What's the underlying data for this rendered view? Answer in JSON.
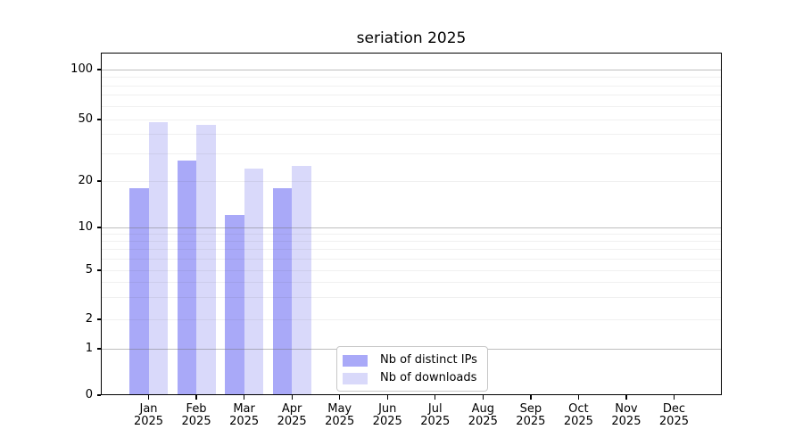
{
  "title": "seriation 2025",
  "chart_data": {
    "type": "bar",
    "title": "seriation 2025",
    "x_axis": {
      "categories": [
        {
          "month": "Jan",
          "year": "2025"
        },
        {
          "month": "Feb",
          "year": "2025"
        },
        {
          "month": "Mar",
          "year": "2025"
        },
        {
          "month": "Apr",
          "year": "2025"
        },
        {
          "month": "May",
          "year": "2025"
        },
        {
          "month": "Jun",
          "year": "2025"
        },
        {
          "month": "Jul",
          "year": "2025"
        },
        {
          "month": "Aug",
          "year": "2025"
        },
        {
          "month": "Sep",
          "year": "2025"
        },
        {
          "month": "Oct",
          "year": "2025"
        },
        {
          "month": "Nov",
          "year": "2025"
        },
        {
          "month": "Dec",
          "year": "2025"
        }
      ]
    },
    "y_axis": {
      "scale": "symlog",
      "tick_values": [
        0,
        1,
        2,
        5,
        10,
        20,
        50,
        100
      ],
      "tick_labels": [
        "0",
        "1",
        "2",
        "5",
        "10",
        "20",
        "50",
        "100"
      ],
      "major_gridlines": [
        1,
        10,
        100
      ],
      "minor_gridlines": [
        2,
        3,
        4,
        5,
        6,
        7,
        8,
        9,
        20,
        30,
        40,
        50,
        60,
        70,
        80,
        90
      ],
      "ylim": [
        0,
        130
      ],
      "grid": true
    },
    "series": [
      {
        "name": "Nb of distinct IPs",
        "color": "#a9a9f8",
        "values": [
          18,
          27,
          12,
          18,
          0,
          0,
          0,
          0,
          0,
          0,
          0,
          0
        ]
      },
      {
        "name": "Nb of downloads",
        "color": "#d9d9fa",
        "values": [
          48,
          46,
          24,
          25,
          0,
          0,
          0,
          0,
          0,
          0,
          0,
          0
        ]
      }
    ],
    "legend": {
      "position": "inside-bottom-center",
      "entries": [
        "Nb of distinct IPs",
        "Nb of downloads"
      ]
    }
  },
  "colors": {
    "background": "#ffffff",
    "spine": "#000000",
    "series_1": "#a9a9f8",
    "series_2": "#d9d9fa",
    "legend_border": "#c8c8c8"
  }
}
